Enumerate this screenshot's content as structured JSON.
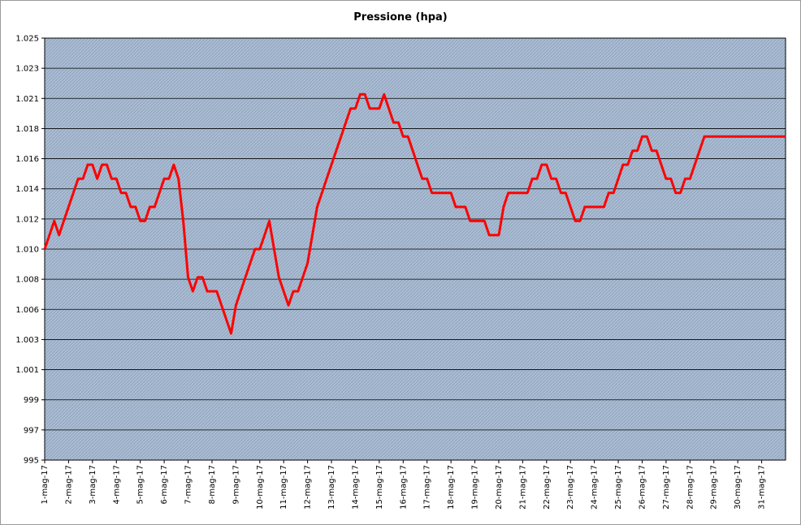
{
  "chart_data": {
    "type": "line",
    "title": "Pressione (hpa)",
    "xlabel": "",
    "ylabel": "",
    "ylim": [
      995,
      1025
    ],
    "y_ticks": [
      "995",
      "997",
      "999",
      "1.001",
      "1.003",
      "1.006",
      "1.008",
      "1.010",
      "1.012",
      "1.014",
      "1.016",
      "1.018",
      "1.021",
      "1.023",
      "1.025"
    ],
    "x_ticks": [
      "1-mag-17",
      "2-mag-17",
      "3-mag-17",
      "4-mag-17",
      "5-mag-17",
      "6-mag-17",
      "7-mag-17",
      "8-mag-17",
      "9-mag-17",
      "10-mag-17",
      "11-mag-17",
      "12-mag-17",
      "13-mag-17",
      "14-mag-17",
      "15-mag-17",
      "16-mag-17",
      "17-mag-17",
      "18-mag-17",
      "19-mag-17",
      "20-mag-17",
      "21-mag-17",
      "22-mag-17",
      "23-mag-17",
      "24-mag-17",
      "25-mag-17",
      "26-mag-17",
      "27-mag-17",
      "28-mag-17",
      "29-mag-17",
      "30-mag-17",
      "31-mag-17"
    ],
    "series": [
      {
        "color": "#ff0000",
        "x": [
          1.0,
          1.2,
          1.4,
          1.6,
          1.8,
          2.0,
          2.2,
          2.4,
          2.6,
          2.8,
          3.0,
          3.2,
          3.4,
          3.6,
          3.8,
          4.0,
          4.2,
          4.4,
          4.6,
          4.8,
          5.0,
          5.2,
          5.4,
          5.6,
          5.8,
          6.0,
          6.2,
          6.4,
          6.6,
          6.8,
          7.0,
          7.2,
          7.4,
          7.6,
          7.8,
          8.0,
          8.2,
          8.4,
          8.6,
          8.8,
          9.0,
          9.2,
          9.4,
          9.6,
          9.8,
          10.0,
          10.2,
          10.4,
          10.6,
          10.8,
          11.0,
          11.2,
          11.4,
          11.6,
          11.8,
          12.0,
          12.2,
          12.4,
          12.6,
          12.8,
          13.0,
          13.2,
          13.4,
          13.6,
          13.8,
          14.0,
          14.2,
          14.4,
          14.6,
          14.8,
          15.0,
          15.2,
          15.4,
          15.6,
          15.8,
          16.0,
          16.2,
          16.4,
          16.6,
          16.8,
          17.0,
          17.2,
          17.4,
          17.6,
          17.8,
          18.0,
          18.2,
          18.4,
          18.6,
          18.8,
          19.0,
          19.2,
          19.4,
          19.6,
          19.8,
          20.0,
          20.2,
          20.4,
          20.6,
          20.8,
          21.0,
          21.2,
          21.4,
          21.6,
          21.8,
          22.0,
          22.2,
          22.4,
          22.6,
          22.8,
          23.0,
          23.2,
          23.4,
          23.6,
          23.8,
          24.0,
          24.2,
          24.4,
          24.6,
          24.8,
          25.0,
          25.2,
          25.4,
          25.6,
          25.8,
          26.0,
          26.2,
          26.4,
          26.6,
          26.8,
          27.0,
          27.2,
          27.4,
          27.6,
          27.8,
          28.0,
          28.2,
          28.4,
          28.6,
          28.8,
          29.0,
          29.2,
          29.4,
          29.6,
          29.8,
          30.0,
          30.2,
          30.4,
          30.6,
          30.8,
          31.0,
          31.2,
          31.4,
          31.6,
          31.8,
          32.0
        ],
        "values": [
          1010,
          1011,
          1012,
          1011,
          1012,
          1013,
          1014,
          1015,
          1015,
          1016,
          1016,
          1015,
          1016,
          1016,
          1015,
          1015,
          1014,
          1014,
          1013,
          1013,
          1012,
          1012,
          1013,
          1013,
          1014,
          1015,
          1015,
          1016,
          1015,
          1012,
          1008,
          1007,
          1008,
          1008,
          1007,
          1007,
          1007,
          1006,
          1005,
          1004,
          1006,
          1007,
          1008,
          1009,
          1010,
          1010,
          1011,
          1012,
          1010,
          1008,
          1007,
          1006,
          1007,
          1007,
          1008,
          1009,
          1011,
          1013,
          1014,
          1015,
          1016,
          1017,
          1018,
          1019,
          1020,
          1020,
          1021,
          1021,
          1020,
          1020,
          1020,
          1021,
          1020,
          1019,
          1019,
          1018,
          1018,
          1017,
          1016,
          1015,
          1015,
          1014,
          1014,
          1014,
          1014,
          1014,
          1013,
          1013,
          1013,
          1012,
          1012,
          1012,
          1012,
          1011,
          1011,
          1011,
          1013,
          1014,
          1014,
          1014,
          1014,
          1014,
          1015,
          1015,
          1016,
          1016,
          1015,
          1015,
          1014,
          1014,
          1013,
          1012,
          1012,
          1013,
          1013,
          1013,
          1013,
          1013,
          1014,
          1014,
          1015,
          1016,
          1016,
          1017,
          1017,
          1018,
          1018,
          1017,
          1017,
          1016,
          1015,
          1015,
          1014,
          1014,
          1015,
          1015,
          1016,
          1017,
          1018,
          1018,
          1018,
          1018,
          1018,
          1018,
          1018,
          1018,
          1018,
          1018,
          1018,
          1018,
          1018,
          1018,
          1018,
          1018,
          1018,
          1018
        ]
      }
    ],
    "grid": true,
    "legend": "none",
    "plot_background": "#a9bcd3",
    "hatch_color": "#8a9bb4"
  }
}
